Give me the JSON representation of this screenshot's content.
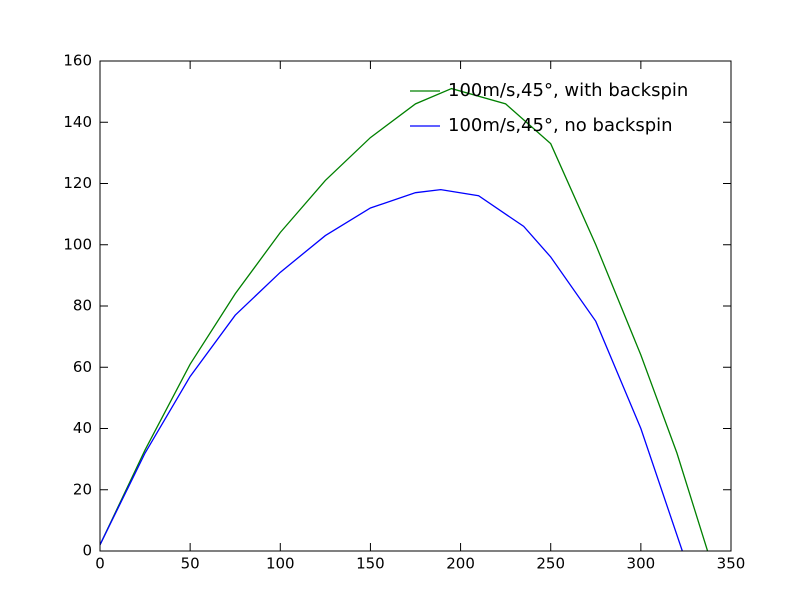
{
  "chart_data": {
    "type": "line",
    "series": [
      {
        "name": "100m/s,45°, with backspin",
        "color": "#008000",
        "x": [
          0,
          25,
          50,
          75,
          100,
          125,
          150,
          175,
          195,
          225,
          250,
          275,
          300,
          320,
          337
        ],
        "values": [
          2,
          33,
          61,
          84,
          104,
          121,
          135,
          146,
          151,
          146,
          133,
          100,
          64,
          32,
          0
        ]
      },
      {
        "name": "100m/s,45°, no backspin",
        "color": "#0000ff",
        "x": [
          0,
          25,
          50,
          75,
          100,
          125,
          150,
          175,
          189,
          210,
          235,
          250,
          275,
          300,
          323
        ],
        "values": [
          2,
          32,
          57,
          77,
          91,
          103,
          112,
          117,
          118,
          116,
          106,
          96,
          75,
          40,
          0
        ]
      }
    ],
    "xlim": [
      0,
      350
    ],
    "xticks": [
      0,
      50,
      100,
      150,
      200,
      250,
      300,
      350
    ],
    "ylim": [
      0,
      160
    ],
    "yticks": [
      0,
      20,
      40,
      60,
      80,
      100,
      120,
      140,
      160
    ],
    "legend": "upper right"
  }
}
